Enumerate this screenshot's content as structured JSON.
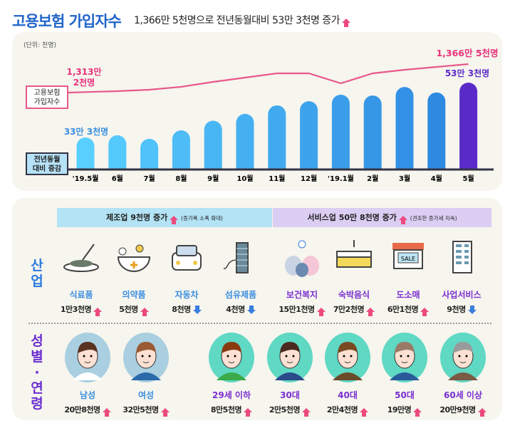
{
  "header": {
    "title": "고용보험 가입자수",
    "subtitle": "1,366만 5천명으로 전년동월대비 53만 3천명 증가",
    "trend_icon": "up-arrow-icon"
  },
  "chart_data": {
    "type": "bar+line",
    "unit_note": "(단위: 천명)",
    "categories": [
      "'19.5월",
      "6월",
      "7월",
      "8월",
      "9월",
      "10월",
      "11월",
      "12월",
      "'19.1월",
      "2월",
      "3월",
      "4월",
      "5월"
    ],
    "bar_series": {
      "name": "전년동월 대비 증감",
      "values": [
        333,
        341,
        328,
        359,
        394,
        419,
        450,
        465,
        489,
        486,
        517,
        497,
        533
      ]
    },
    "line_series": {
      "name": "고용보험 가입자수",
      "values": [
        13132,
        13159,
        13185,
        13239,
        13332,
        13412,
        13492,
        13492,
        13305,
        13492,
        13558,
        13612,
        13665
      ]
    },
    "legend": {
      "line_label_1": "고용보험",
      "line_label_2": "가입자수",
      "bar_label_1": "전년동월",
      "bar_label_2": "대비 증감"
    },
    "annotations": {
      "line_start_1": "1,313만",
      "line_start_2": "2천명",
      "line_end": "1,366만 5천명",
      "bar_start": "33만 3천명",
      "bar_end": "53만 3천명"
    },
    "colors": {
      "line": "#e8588a",
      "bar_start": "#58cfff",
      "bar_end": "#2a84de",
      "bar_last": "#5b2bc9",
      "axis": "#333344"
    }
  },
  "industry": {
    "section_label": "산업",
    "manufacturing": {
      "title": "제조업 9천명 증가",
      "note": "(증가폭 소폭 확대)"
    },
    "services": {
      "title": "서비스업 50만 8천명 증가",
      "note": "(견조한 증가세 지속)"
    },
    "items": [
      {
        "name": "식료품",
        "value": "1만3천명",
        "trend": "up",
        "icon": "food-bowl-icon"
      },
      {
        "name": "의약품",
        "value": "5천명",
        "trend": "up",
        "icon": "mortar-pill-icon"
      },
      {
        "name": "자동차",
        "value": "8천명",
        "trend": "down",
        "icon": "car-icon"
      },
      {
        "name": "섬유제품",
        "value": "4천명",
        "trend": "down",
        "icon": "thread-spool-icon"
      },
      {
        "name": "보건복지",
        "value": "15만1천명",
        "trend": "up",
        "icon": "family-health-icon"
      },
      {
        "name": "숙박음식",
        "value": "7만2천명",
        "trend": "up",
        "icon": "bed-icon"
      },
      {
        "name": "도소매",
        "value": "6만1천명",
        "trend": "up",
        "icon": "shop-icon",
        "sign": "SALE"
      },
      {
        "name": "사업서비스",
        "value": "9천명",
        "trend": "down",
        "icon": "office-building-icon"
      }
    ]
  },
  "demographics": {
    "section_label_1": "성별",
    "section_label_2": "·",
    "section_label_3": "연령",
    "items": [
      {
        "name": "남성",
        "value": "20만8천명",
        "trend": "up",
        "group": "gender",
        "hair": "#5a3222",
        "shirt": "#ffffff"
      },
      {
        "name": "여성",
        "value": "32만5천명",
        "trend": "up",
        "group": "gender",
        "hair": "#9a5a34",
        "shirt": "#2a6aaa"
      },
      {
        "name": "29세 이하",
        "value": "8만5천명",
        "trend": "up",
        "group": "age",
        "hair": "#8a3a12",
        "shirt": "#3aaa4a"
      },
      {
        "name": "30대",
        "value": "2만5천명",
        "trend": "up",
        "group": "age",
        "hair": "#4a2a1e",
        "shirt": "#2a4a8a"
      },
      {
        "name": "40대",
        "value": "2만4천명",
        "trend": "up",
        "group": "age",
        "hair": "#7a4a22",
        "shirt": "#6a4a2a"
      },
      {
        "name": "50대",
        "value": "19만명",
        "trend": "up",
        "group": "age",
        "hair": "#9a7a66",
        "shirt": "#2a5a9a"
      },
      {
        "name": "60세 이상",
        "value": "20만9천명",
        "trend": "up",
        "group": "age",
        "hair": "#9a9a9a",
        "shirt": "#7a5a44"
      }
    ]
  }
}
